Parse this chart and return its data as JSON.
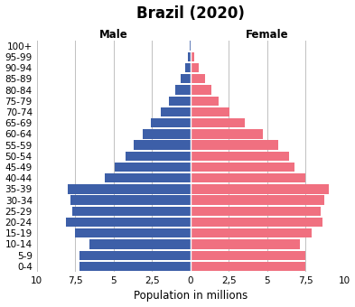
{
  "title": "Brazil (2020)",
  "xlabel": "Population in millions",
  "male_label": "Male",
  "female_label": "Female",
  "age_groups": [
    "0-4",
    "5-9",
    "10-14",
    "15-19",
    "20-24",
    "25-29",
    "30-34",
    "35-39",
    "40-44",
    "45-49",
    "50-54",
    "55-59",
    "60-64",
    "65-69",
    "70-74",
    "75-79",
    "80-84",
    "85-89",
    "90-94",
    "95-99",
    "100+"
  ],
  "male": [
    7.2,
    7.2,
    6.6,
    7.5,
    8.1,
    7.7,
    7.8,
    8.0,
    5.6,
    4.9,
    4.2,
    3.7,
    3.1,
    2.6,
    1.9,
    1.4,
    1.0,
    0.65,
    0.35,
    0.15,
    0.05
  ],
  "female": [
    7.5,
    7.5,
    7.1,
    7.9,
    8.6,
    8.5,
    8.7,
    9.0,
    7.5,
    6.8,
    6.4,
    5.7,
    4.7,
    3.55,
    2.55,
    1.85,
    1.35,
    0.95,
    0.55,
    0.25,
    0.1
  ],
  "xlim": 10,
  "xticklabels": [
    "10",
    "7,5",
    "5",
    "2,5",
    "0",
    "2,5",
    "5",
    "7,5",
    "10"
  ],
  "male_color": "#3D5FA8",
  "female_color": "#F07080",
  "bg_color": "#FFFFFF",
  "bar_height": 0.85,
  "title_fontsize": 12,
  "label_fontsize": 8.5,
  "tick_fontsize": 7.5,
  "axis_label_fontsize": 8.5,
  "grid_color": "#C0C0C0"
}
